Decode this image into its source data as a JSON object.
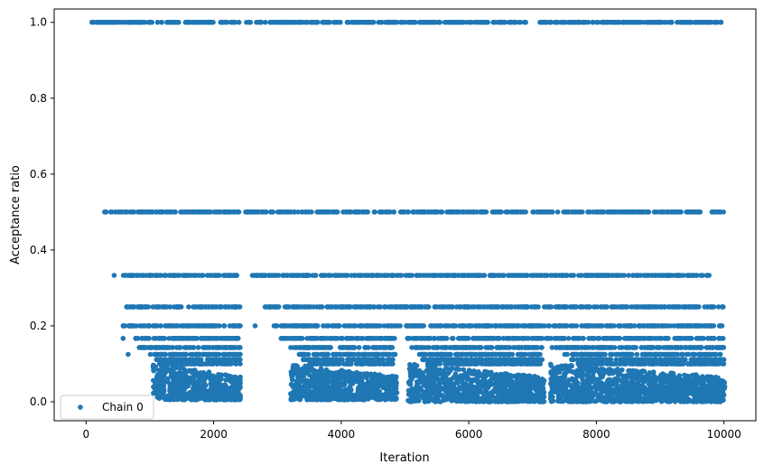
{
  "chart_data": {
    "type": "scatter",
    "title": "",
    "xlabel": "Iteration",
    "ylabel": "Acceptance ratio",
    "xlim": [
      -500,
      10500
    ],
    "ylim": [
      -0.05,
      1.035
    ],
    "xticks": [
      0,
      2000,
      4000,
      6000,
      8000,
      10000
    ],
    "xtick_labels": [
      "0",
      "2000",
      "4000",
      "6000",
      "8000",
      "10000"
    ],
    "yticks": [
      0.0,
      0.2,
      0.4,
      0.6,
      0.8,
      1.0
    ],
    "ytick_labels": [
      "0.0",
      "0.2",
      "0.4",
      "0.6",
      "0.8",
      "1.0"
    ],
    "grid": false,
    "legend": {
      "position": "lower-left",
      "entries": [
        "Chain 0"
      ]
    },
    "series": [
      {
        "name": "Chain 0",
        "color": "#1f77b4",
        "marker": "circle",
        "levels": [
          {
            "y": 1.0,
            "x_ranges": [
              [
                0,
                1000
              ],
              [
                1000,
                2400
              ],
              [
                2500,
                4300
              ],
              [
                4300,
                4900
              ],
              [
                4900,
                5700
              ],
              [
                5700,
                6900
              ],
              [
                7100,
                8400
              ],
              [
                8400,
                9700
              ],
              [
                9700,
                10000
              ]
            ]
          },
          {
            "y": 0.5,
            "x_ranges": [
              [
                270,
                2400
              ],
              [
                2500,
                4900
              ],
              [
                4900,
                6900
              ],
              [
                7000,
                9700
              ],
              [
                9800,
                10000
              ]
            ]
          },
          {
            "y": 0.333,
            "x_ranges": [
              [
                570,
                2420
              ],
              [
                2600,
                7150
              ],
              [
                7180,
                9780
              ]
            ]
          },
          {
            "y": 0.25,
            "x_ranges": [
              [
                620,
                2420
              ],
              [
                2800,
                7150
              ],
              [
                7180,
                9850
              ],
              [
                9900,
                10000
              ]
            ]
          },
          {
            "y": 0.2,
            "x_ranges": [
              [
                580,
                2420
              ],
              [
                2930,
                7150
              ],
              [
                7180,
                9850
              ],
              [
                9920,
                10000
              ]
            ]
          },
          {
            "y": 0.167,
            "x_ranges": [
              [
                750,
                2420
              ],
              [
                3050,
                4850
              ],
              [
                5030,
                7150
              ],
              [
                7200,
                10000
              ]
            ]
          },
          {
            "y": 0.143,
            "x_ranges": [
              [
                830,
                2420
              ],
              [
                3200,
                4850
              ],
              [
                5100,
                7150
              ],
              [
                7300,
                10000
              ]
            ]
          },
          {
            "y": 0.125,
            "x_ranges": [
              [
                1000,
                2420
              ],
              [
                3300,
                4850
              ],
              [
                5200,
                7150
              ],
              [
                7500,
                10000
              ]
            ]
          },
          {
            "y": 0.111,
            "x_ranges": [
              [
                1100,
                2420
              ],
              [
                3400,
                4850
              ],
              [
                5250,
                7150
              ],
              [
                7600,
                10000
              ]
            ]
          },
          {
            "y": 0.1,
            "x_ranges": [
              [
                1150,
                2420
              ],
              [
                3500,
                4850
              ],
              [
                5300,
                7150
              ],
              [
                7700,
                10000
              ]
            ]
          }
        ],
        "clusters": [
          {
            "x_range": [
              1050,
              2420
            ],
            "y_range": [
              0.005,
              0.1
            ]
          },
          {
            "x_range": [
              3200,
              4880
            ],
            "y_range": [
              0.005,
              0.1
            ]
          },
          {
            "x_range": [
              5050,
              7180
            ],
            "y_range": [
              0.0,
              0.1
            ]
          },
          {
            "x_range": [
              7280,
              10030
            ],
            "y_range": [
              0.0,
              0.1
            ]
          }
        ],
        "lone_points": [
          [
            440,
            0.333
          ],
          [
            2650,
            0.2
          ],
          [
            580,
            0.167
          ],
          [
            660,
            0.125
          ],
          [
            9950,
            0.05
          ]
        ]
      }
    ]
  }
}
